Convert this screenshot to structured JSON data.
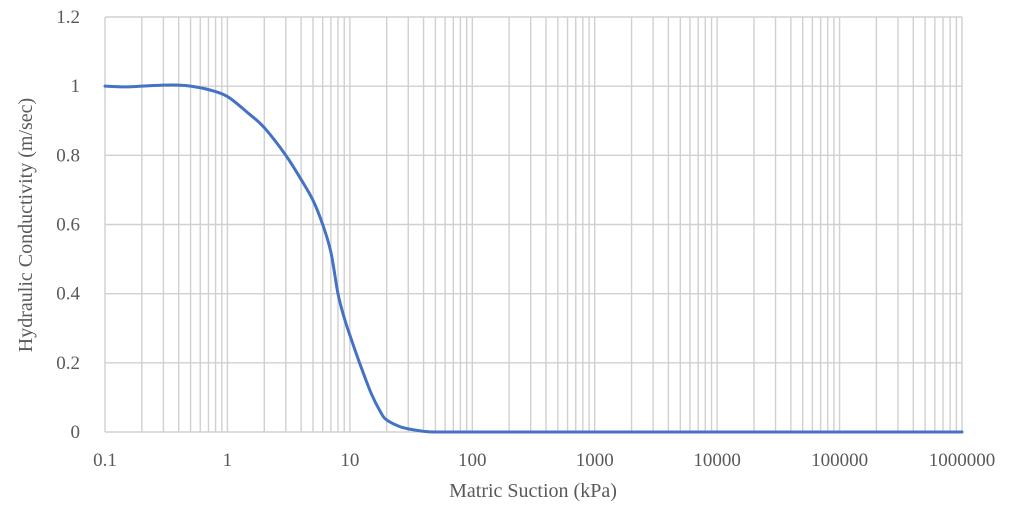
{
  "chart_data": {
    "type": "line",
    "title": "",
    "xlabel": "Matric Suction (kPa)",
    "ylabel": "Hydraulic Conductivity (m/sec)",
    "x_scale": "log",
    "xlim": [
      0.1,
      1000000
    ],
    "ylim": [
      0,
      1.2
    ],
    "grid": true,
    "legend": "none",
    "x_tick_labels": [
      "0.1",
      "1",
      "10",
      "100",
      "1000",
      "10000",
      "100000",
      "1000000"
    ],
    "y_tick_labels": [
      "0",
      "0.2",
      "0.4",
      "0.6",
      "0.8",
      "1",
      "1.2"
    ],
    "colors": {
      "series": "#4472C4",
      "grid": "#D0D0D0",
      "text": "#595959"
    },
    "series": [
      {
        "x": [
          0.1,
          0.15,
          0.2,
          0.3,
          0.4,
          0.5,
          0.7,
          1,
          1.5,
          2,
          3,
          4,
          5,
          6,
          7,
          8,
          9,
          10,
          12,
          15,
          18,
          20,
          25,
          30,
          40,
          50,
          100,
          1000,
          10000,
          100000,
          1000000
        ],
        "y": [
          1.0,
          0.998,
          1.0,
          1.003,
          1.003,
          1.0,
          0.99,
          0.97,
          0.92,
          0.88,
          0.8,
          0.73,
          0.67,
          0.6,
          0.52,
          0.4,
          0.33,
          0.28,
          0.2,
          0.11,
          0.055,
          0.035,
          0.017,
          0.009,
          0.002,
          0.0,
          0.0,
          0.0,
          0.0,
          0.0,
          0.0
        ]
      }
    ]
  }
}
